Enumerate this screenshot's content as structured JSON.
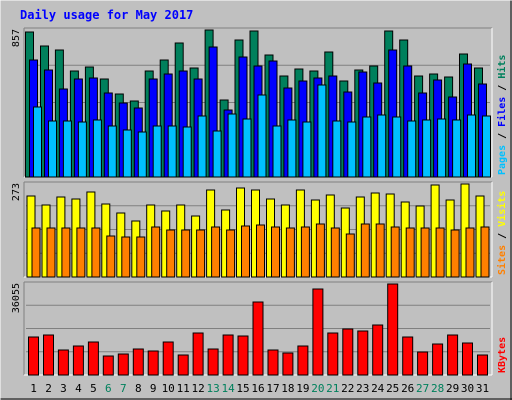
{
  "chart_data": {
    "type": "bar",
    "title": "Daily usage for May 2017",
    "x": [
      "1",
      "2",
      "3",
      "4",
      "5",
      "6",
      "7",
      "8",
      "9",
      "10",
      "11",
      "12",
      "13",
      "14",
      "15",
      "16",
      "17",
      "18",
      "19",
      "20",
      "21",
      "22",
      "23",
      "24",
      "25",
      "26",
      "27",
      "28",
      "29",
      "30",
      "31"
    ],
    "weekend_days": [
      6,
      7,
      13,
      14,
      20,
      21,
      27,
      28
    ],
    "colors": {
      "hits": "#00805c",
      "files": "#0000ff",
      "pages": "#00c0ff",
      "visits": "#ffff00",
      "sites": "#ff8000",
      "kbytes": "#ff0000",
      "title": "#0000ff",
      "weekend_label": "#00805c",
      "weekday_label": "#000000",
      "panel_bg": "#c0c0c0"
    },
    "panels": [
      {
        "id": "hits-files-pages",
        "max_label": "857",
        "ymax": 857,
        "legend": [
          {
            "text": "Pages",
            "color": "#00c0ff"
          },
          {
            "text": " / ",
            "color": "#000000"
          },
          {
            "text": "Files",
            "color": "#0000ff"
          },
          {
            "text": " / ",
            "color": "#000000"
          },
          {
            "text": "Hits",
            "color": "#00805c"
          }
        ],
        "series": [
          {
            "name": "Hits",
            "values": [
              845,
              763,
              740,
              620,
              640,
              570,
              485,
              445,
              620,
              680,
              780,
              637,
              855,
              450,
              796,
              850,
              710,
              590,
              630,
              620,
              730,
              560,
              625,
              645,
              850,
              800,
              590,
              600,
              585,
              718,
              635
            ]
          },
          {
            "name": "Files",
            "values": [
              680,
              625,
              515,
              570,
              580,
              490,
              430,
              400,
              573,
              600,
              620,
              570,
              760,
              390,
              700,
              650,
              675,
              520,
              558,
              580,
              590,
              495,
              615,
              550,
              740,
              650,
              490,
              565,
              465,
              660,
              540
            ]
          },
          {
            "name": "Pages",
            "values": [
              410,
              325,
              325,
              320,
              335,
              300,
              275,
              260,
              300,
              298,
              290,
              357,
              270,
              370,
              340,
              478,
              298,
              330,
              320,
              536,
              325,
              320,
              350,
              360,
              350,
              328,
              330,
              340,
              335,
              360,
              355
            ]
          }
        ]
      },
      {
        "id": "visits-sites",
        "max_label": "273",
        "ymax": 273,
        "legend": [
          {
            "text": "Sites",
            "color": "#ff8000"
          },
          {
            "text": " / ",
            "color": "#000000"
          },
          {
            "text": "Visits",
            "color": "#ffff00"
          }
        ],
        "series": [
          {
            "name": "Visits",
            "values": [
              237,
              210,
              235,
              230,
              250,
              215,
              188,
              165,
              210,
              195,
              210,
              180,
              255,
              196,
              260,
              254,
              230,
              210,
              255,
              225,
              240,
              203,
              234,
              246,
              243,
              220,
              208,
              270,
              225,
              273,
              237
            ]
          },
          {
            "name": "Sites",
            "values": [
              145,
              145,
              145,
              145,
              145,
              120,
              118,
              117,
              148,
              137,
              138,
              139,
              146,
              139,
              151,
              154,
              147,
              144,
              146,
              156,
              145,
              125,
              155,
              157,
              148,
              143,
              143,
              144,
              139,
              145,
              146
            ]
          }
        ]
      },
      {
        "id": "kbytes",
        "max_label": "36055",
        "ymax": 36055,
        "legend": [
          {
            "text": "KBytes",
            "color": "#ff0000"
          }
        ],
        "series": [
          {
            "name": "KBytes",
            "values": [
              15000,
              16000,
              10000,
              11500,
              13000,
              7500,
              8500,
              10200,
              9600,
              13000,
              7900,
              16500,
              10400,
              16000,
              15500,
              29000,
              9800,
              8800,
              11500,
              34000,
              16800,
              18200,
              17400,
              19800,
              36055,
              15000,
              9200,
              12300,
              16000,
              12800,
              7800
            ]
          }
        ]
      }
    ]
  }
}
